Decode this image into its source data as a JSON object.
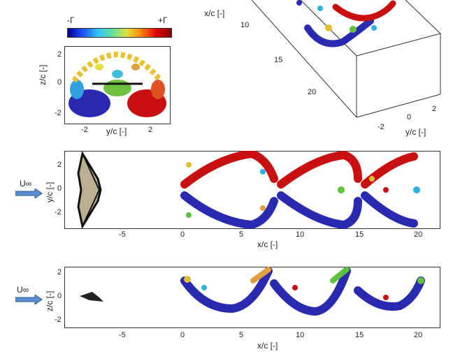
{
  "colorbar": {
    "min_label": "-Γ",
    "max_label": "+Γ"
  },
  "inset": {
    "xlabel": "y/c [-]",
    "ylabel": "z/c [-]",
    "xticks": [
      "-2",
      "2"
    ],
    "yticks": [
      "2",
      "0",
      "-2"
    ]
  },
  "iso3d": {
    "xlabel": "x/c [-]",
    "ylabel": "y/c [-]",
    "xticks": [
      "10",
      "15",
      "20"
    ],
    "yticks": [
      "-2",
      "0",
      "2"
    ]
  },
  "top_view": {
    "flow_label": "U∞",
    "xlabel": "x/c [-]",
    "ylabel": "y/c [-]",
    "xticks": [
      "-5",
      "0",
      "5",
      "10",
      "15",
      "20"
    ],
    "yticks": [
      "2",
      "0",
      "-2"
    ]
  },
  "side_view": {
    "flow_label": "U∞",
    "xlabel": "x/c [-]",
    "ylabel": "z/c [-]",
    "xticks": [
      "-5",
      "0",
      "5",
      "10",
      "15",
      "20"
    ],
    "yticks": [
      "2",
      "0",
      "-2"
    ]
  },
  "colors": {
    "positive": "#d01010",
    "negative": "#2a2ab0",
    "mid": "#e8d040",
    "arrow": "#5a8ed0"
  }
}
